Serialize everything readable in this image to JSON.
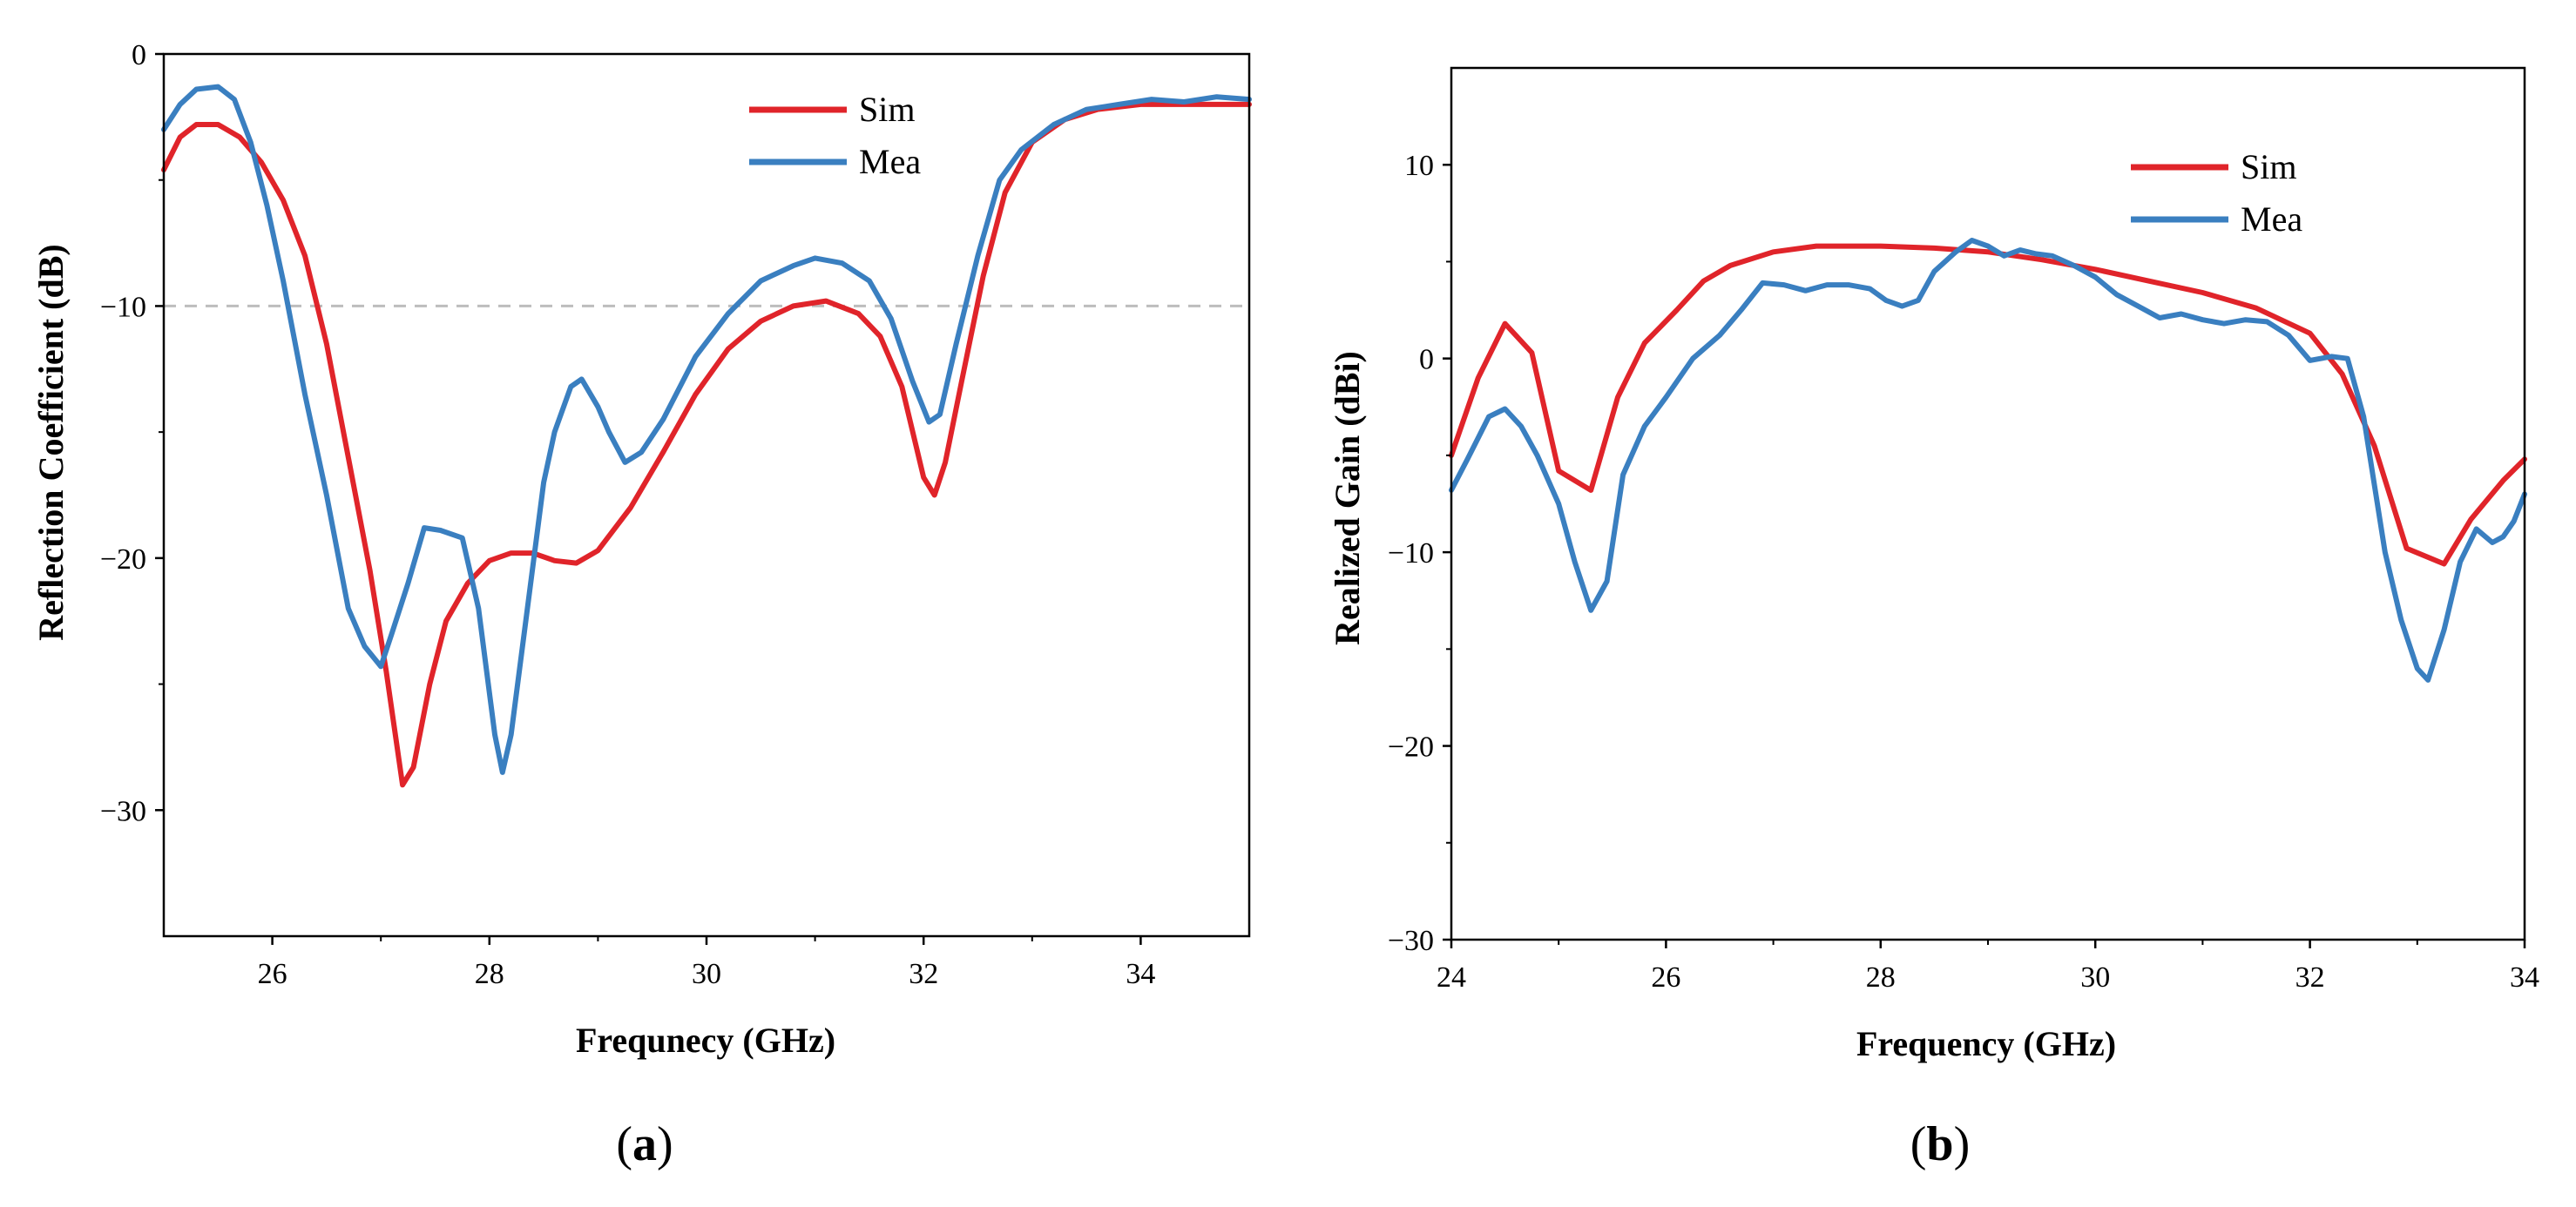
{
  "chart_data": [
    {
      "panel_label": "a",
      "type": "line",
      "title": "",
      "xlabel": "Frequnecy (GHz)",
      "ylabel": "Reflection Coefficient (dB)",
      "xlim": [
        25,
        35
      ],
      "ylim": [
        -35,
        0
      ],
      "xticks": [
        26,
        28,
        30,
        32,
        34
      ],
      "xtick_labels": [
        "26",
        "28",
        "30",
        "32",
        "34"
      ],
      "yticks": [
        0,
        -10,
        -20,
        -30
      ],
      "ytick_labels": [
        "0",
        "−10",
        "−20",
        "−30"
      ],
      "legend_position": "top-right",
      "reference_line": {
        "y": -10,
        "style": "dashed",
        "color": "#bdbdbd"
      },
      "series": [
        {
          "name": "Sim",
          "color": "#e0242a",
          "points": [
            [
              25.0,
              -4.6
            ],
            [
              25.15,
              -3.3
            ],
            [
              25.3,
              -2.8
            ],
            [
              25.5,
              -2.8
            ],
            [
              25.7,
              -3.3
            ],
            [
              25.9,
              -4.3
            ],
            [
              26.1,
              -5.8
            ],
            [
              26.3,
              -8.0
            ],
            [
              26.5,
              -11.5
            ],
            [
              26.7,
              -16.0
            ],
            [
              26.9,
              -20.5
            ],
            [
              27.05,
              -24.5
            ],
            [
              27.2,
              -29.0
            ],
            [
              27.3,
              -28.3
            ],
            [
              27.45,
              -25.0
            ],
            [
              27.6,
              -22.5
            ],
            [
              27.8,
              -21.0
            ],
            [
              28.0,
              -20.1
            ],
            [
              28.2,
              -19.8
            ],
            [
              28.4,
              -19.8
            ],
            [
              28.6,
              -20.1
            ],
            [
              28.8,
              -20.2
            ],
            [
              29.0,
              -19.7
            ],
            [
              29.3,
              -18.0
            ],
            [
              29.6,
              -15.8
            ],
            [
              29.9,
              -13.5
            ],
            [
              30.2,
              -11.7
            ],
            [
              30.5,
              -10.6
            ],
            [
              30.8,
              -10.0
            ],
            [
              31.1,
              -9.8
            ],
            [
              31.4,
              -10.3
            ],
            [
              31.6,
              -11.2
            ],
            [
              31.8,
              -13.2
            ],
            [
              32.0,
              -16.8
            ],
            [
              32.1,
              -17.5
            ],
            [
              32.2,
              -16.2
            ],
            [
              32.35,
              -13.0
            ],
            [
              32.55,
              -8.8
            ],
            [
              32.75,
              -5.5
            ],
            [
              33.0,
              -3.5
            ],
            [
              33.3,
              -2.6
            ],
            [
              33.6,
              -2.2
            ],
            [
              34.0,
              -2.0
            ],
            [
              34.5,
              -2.0
            ],
            [
              35.0,
              -2.0
            ]
          ]
        },
        {
          "name": "Mea",
          "color": "#3a7fc0",
          "points": [
            [
              25.0,
              -3.0
            ],
            [
              25.15,
              -2.0
            ],
            [
              25.3,
              -1.4
            ],
            [
              25.5,
              -1.3
            ],
            [
              25.65,
              -1.8
            ],
            [
              25.8,
              -3.5
            ],
            [
              25.95,
              -6.0
            ],
            [
              26.1,
              -9.0
            ],
            [
              26.3,
              -13.5
            ],
            [
              26.5,
              -17.5
            ],
            [
              26.7,
              -22.0
            ],
            [
              26.85,
              -23.5
            ],
            [
              27.0,
              -24.3
            ],
            [
              27.1,
              -23.0
            ],
            [
              27.25,
              -21.0
            ],
            [
              27.4,
              -18.8
            ],
            [
              27.55,
              -18.9
            ],
            [
              27.75,
              -19.2
            ],
            [
              27.9,
              -22.0
            ],
            [
              28.05,
              -27.0
            ],
            [
              28.12,
              -28.5
            ],
            [
              28.2,
              -27.0
            ],
            [
              28.35,
              -22.0
            ],
            [
              28.5,
              -17.0
            ],
            [
              28.6,
              -15.0
            ],
            [
              28.75,
              -13.2
            ],
            [
              28.85,
              -12.9
            ],
            [
              29.0,
              -14.0
            ],
            [
              29.1,
              -15.0
            ],
            [
              29.25,
              -16.2
            ],
            [
              29.4,
              -15.8
            ],
            [
              29.6,
              -14.5
            ],
            [
              29.9,
              -12.0
            ],
            [
              30.2,
              -10.3
            ],
            [
              30.5,
              -9.0
            ],
            [
              30.8,
              -8.4
            ],
            [
              31.0,
              -8.1
            ],
            [
              31.25,
              -8.3
            ],
            [
              31.5,
              -9.0
            ],
            [
              31.7,
              -10.5
            ],
            [
              31.9,
              -13.0
            ],
            [
              32.05,
              -14.6
            ],
            [
              32.15,
              -14.3
            ],
            [
              32.3,
              -11.5
            ],
            [
              32.5,
              -8.0
            ],
            [
              32.7,
              -5.0
            ],
            [
              32.9,
              -3.8
            ],
            [
              33.2,
              -2.8
            ],
            [
              33.5,
              -2.2
            ],
            [
              33.8,
              -2.0
            ],
            [
              34.1,
              -1.8
            ],
            [
              34.4,
              -1.9
            ],
            [
              34.7,
              -1.7
            ],
            [
              35.0,
              -1.8
            ]
          ]
        }
      ]
    },
    {
      "panel_label": "b",
      "type": "line",
      "title": "",
      "xlabel": "Frequency (GHz)",
      "ylabel": "Realized Gain (dBi)",
      "xlim": [
        24,
        34
      ],
      "ylim": [
        -30,
        15
      ],
      "xticks": [
        24,
        26,
        28,
        30,
        32,
        34
      ],
      "xtick_labels": [
        "24",
        "26",
        "28",
        "30",
        "32",
        "34"
      ],
      "yticks": [
        10,
        0,
        -10,
        -20,
        -30
      ],
      "ytick_labels": [
        "10",
        "0",
        "−10",
        "−20",
        "−30"
      ],
      "legend_position": "top-right",
      "series": [
        {
          "name": "Sim",
          "color": "#e0242a",
          "points": [
            [
              24.0,
              -5.0
            ],
            [
              24.25,
              -1.0
            ],
            [
              24.5,
              1.8
            ],
            [
              24.75,
              0.3
            ],
            [
              25.0,
              -5.8
            ],
            [
              25.3,
              -6.8
            ],
            [
              25.55,
              -2.0
            ],
            [
              25.8,
              0.8
            ],
            [
              26.1,
              2.5
            ],
            [
              26.35,
              4.0
            ],
            [
              26.6,
              4.8
            ],
            [
              27.0,
              5.5
            ],
            [
              27.4,
              5.8
            ],
            [
              28.0,
              5.8
            ],
            [
              28.5,
              5.7
            ],
            [
              29.0,
              5.5
            ],
            [
              29.5,
              5.1
            ],
            [
              30.0,
              4.6
            ],
            [
              30.5,
              4.0
            ],
            [
              31.0,
              3.4
            ],
            [
              31.5,
              2.6
            ],
            [
              32.0,
              1.3
            ],
            [
              32.3,
              -0.8
            ],
            [
              32.6,
              -4.5
            ],
            [
              32.9,
              -9.8
            ],
            [
              33.25,
              -10.6
            ],
            [
              33.5,
              -8.3
            ],
            [
              33.8,
              -6.3
            ],
            [
              34.0,
              -5.2
            ]
          ]
        },
        {
          "name": "Mea",
          "color": "#3a7fc0",
          "points": [
            [
              24.0,
              -6.8
            ],
            [
              24.15,
              -5.2
            ],
            [
              24.35,
              -3.0
            ],
            [
              24.5,
              -2.6
            ],
            [
              24.65,
              -3.5
            ],
            [
              24.8,
              -5.0
            ],
            [
              25.0,
              -7.5
            ],
            [
              25.15,
              -10.5
            ],
            [
              25.3,
              -13.0
            ],
            [
              25.45,
              -11.5
            ],
            [
              25.6,
              -6.0
            ],
            [
              25.8,
              -3.5
            ],
            [
              26.0,
              -2.0
            ],
            [
              26.25,
              0.0
            ],
            [
              26.5,
              1.2
            ],
            [
              26.7,
              2.5
            ],
            [
              26.9,
              3.9
            ],
            [
              27.1,
              3.8
            ],
            [
              27.3,
              3.5
            ],
            [
              27.5,
              3.8
            ],
            [
              27.7,
              3.8
            ],
            [
              27.9,
              3.6
            ],
            [
              28.05,
              3.0
            ],
            [
              28.2,
              2.7
            ],
            [
              28.35,
              3.0
            ],
            [
              28.5,
              4.5
            ],
            [
              28.7,
              5.5
            ],
            [
              28.85,
              6.1
            ],
            [
              29.0,
              5.8
            ],
            [
              29.15,
              5.3
            ],
            [
              29.3,
              5.6
            ],
            [
              29.45,
              5.4
            ],
            [
              29.6,
              5.3
            ],
            [
              29.8,
              4.8
            ],
            [
              30.0,
              4.2
            ],
            [
              30.2,
              3.3
            ],
            [
              30.4,
              2.7
            ],
            [
              30.6,
              2.1
            ],
            [
              30.8,
              2.3
            ],
            [
              31.0,
              2.0
            ],
            [
              31.2,
              1.8
            ],
            [
              31.4,
              2.0
            ],
            [
              31.6,
              1.9
            ],
            [
              31.8,
              1.2
            ],
            [
              32.0,
              -0.1
            ],
            [
              32.2,
              0.1
            ],
            [
              32.35,
              0.0
            ],
            [
              32.5,
              -3.0
            ],
            [
              32.6,
              -6.5
            ],
            [
              32.7,
              -10.0
            ],
            [
              32.85,
              -13.5
            ],
            [
              33.0,
              -16.0
            ],
            [
              33.1,
              -16.6
            ],
            [
              33.25,
              -14.0
            ],
            [
              33.4,
              -10.5
            ],
            [
              33.55,
              -8.8
            ],
            [
              33.7,
              -9.5
            ],
            [
              33.8,
              -9.2
            ],
            [
              33.9,
              -8.4
            ],
            [
              34.0,
              -7.0
            ]
          ]
        }
      ]
    }
  ]
}
